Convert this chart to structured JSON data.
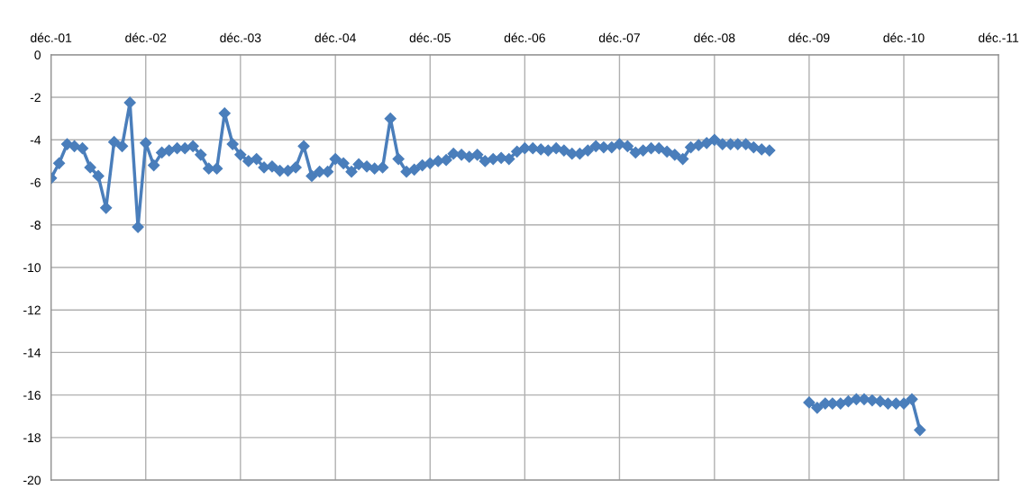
{
  "chart_data": {
    "type": "line",
    "marker": "diamond",
    "line_style": "solid",
    "grid": true,
    "legend": false,
    "x": [
      "2001-12",
      "2002-01",
      "2002-02",
      "2002-03",
      "2002-04",
      "2002-05",
      "2002-06",
      "2002-07",
      "2002-08",
      "2002-09",
      "2002-10",
      "2002-11",
      "2002-12",
      "2003-01",
      "2003-02",
      "2003-03",
      "2003-04",
      "2003-05",
      "2003-06",
      "2003-07",
      "2003-08",
      "2003-09",
      "2003-10",
      "2003-11",
      "2003-12",
      "2004-01",
      "2004-02",
      "2004-03",
      "2004-04",
      "2004-05",
      "2004-06",
      "2004-07",
      "2004-08",
      "2004-09",
      "2004-10",
      "2004-11",
      "2004-12",
      "2005-01",
      "2005-02",
      "2005-03",
      "2005-04",
      "2005-05",
      "2005-06",
      "2005-07",
      "2005-08",
      "2005-09",
      "2005-10",
      "2005-11",
      "2005-12",
      "2006-01",
      "2006-02",
      "2006-03",
      "2006-04",
      "2006-05",
      "2006-06",
      "2006-07",
      "2006-08",
      "2006-09",
      "2006-10",
      "2006-11",
      "2006-12",
      "2007-01",
      "2007-02",
      "2007-03",
      "2007-04",
      "2007-05",
      "2007-06",
      "2007-07",
      "2007-08",
      "2007-09",
      "2007-10",
      "2007-11",
      "2007-12",
      "2008-01",
      "2008-02",
      "2008-03",
      "2008-04",
      "2008-05",
      "2008-06",
      "2008-07",
      "2008-08",
      "2008-09",
      "2008-10",
      "2008-11",
      "2008-12",
      "2009-01",
      "2009-02",
      "2009-03",
      "2009-04",
      "2009-05",
      "2009-06",
      "2009-07",
      "2009-08",
      "2009-09",
      "2009-10",
      "2009-11",
      "2009-12",
      "2010-01",
      "2010-02",
      "2010-03",
      "2010-04",
      "2010-05",
      "2010-06",
      "2010-07",
      "2010-08",
      "2010-09",
      "2010-10",
      "2010-11",
      "2010-12",
      "2011-01",
      "2011-02"
    ],
    "series": [
      {
        "color": "#4a7ebb",
        "values": [
          -5.8,
          -5.1,
          -4.2,
          -4.3,
          -4.4,
          -5.3,
          -5.7,
          -7.2,
          -4.1,
          -4.3,
          -2.25,
          -8.1,
          -4.15,
          -5.2,
          -4.6,
          -4.5,
          -4.4,
          -4.4,
          -4.3,
          -4.7,
          -5.35,
          -5.35,
          -2.75,
          -4.2,
          -4.7,
          -5.0,
          -4.9,
          -5.3,
          -5.25,
          -5.45,
          -5.45,
          -5.3,
          -4.3,
          -5.7,
          -5.5,
          -5.5,
          -4.9,
          -5.1,
          -5.5,
          -5.15,
          -5.25,
          -5.35,
          -5.3,
          -3.0,
          -4.9,
          -5.5,
          -5.4,
          -5.2,
          -5.1,
          -5.0,
          -4.95,
          -4.65,
          -4.7,
          -4.8,
          -4.7,
          -5.0,
          -4.9,
          -4.85,
          -4.9,
          -4.55,
          -4.4,
          -4.4,
          -4.45,
          -4.5,
          -4.4,
          -4.5,
          -4.65,
          -4.65,
          -4.5,
          -4.3,
          -4.35,
          -4.35,
          -4.2,
          -4.3,
          -4.6,
          -4.5,
          -4.4,
          -4.4,
          -4.55,
          -4.7,
          -4.9,
          -4.35,
          -4.25,
          -4.15,
          -4.0,
          -4.2,
          -4.2,
          -4.2,
          -4.2,
          -4.35,
          -4.45,
          -4.5,
          null,
          null,
          null,
          null,
          -16.35,
          -16.6,
          -16.4,
          -16.4,
          -16.4,
          -16.3,
          -16.2,
          -16.2,
          -16.25,
          -16.3,
          -16.4,
          -16.4,
          -16.4,
          -16.2,
          -17.65
        ]
      }
    ],
    "xlim": [
      "2001-12",
      "2011-12"
    ],
    "xticks": [
      {
        "value": "2001-12",
        "label": "déc.-01"
      },
      {
        "value": "2002-12",
        "label": "déc.-02"
      },
      {
        "value": "2003-12",
        "label": "déc.-03"
      },
      {
        "value": "2004-12",
        "label": "déc.-04"
      },
      {
        "value": "2005-12",
        "label": "déc.-05"
      },
      {
        "value": "2006-12",
        "label": "déc.-06"
      },
      {
        "value": "2007-12",
        "label": "déc.-07"
      },
      {
        "value": "2008-12",
        "label": "déc.-08"
      },
      {
        "value": "2009-12",
        "label": "déc.-09"
      },
      {
        "value": "2010-12",
        "label": "déc.-10"
      },
      {
        "value": "2011-12",
        "label": "déc.-11"
      }
    ],
    "ylim": [
      -20,
      0
    ],
    "yticks": [
      -20,
      -18,
      -16,
      -14,
      -12,
      -10,
      -8,
      -6,
      -4,
      -2,
      0
    ]
  }
}
